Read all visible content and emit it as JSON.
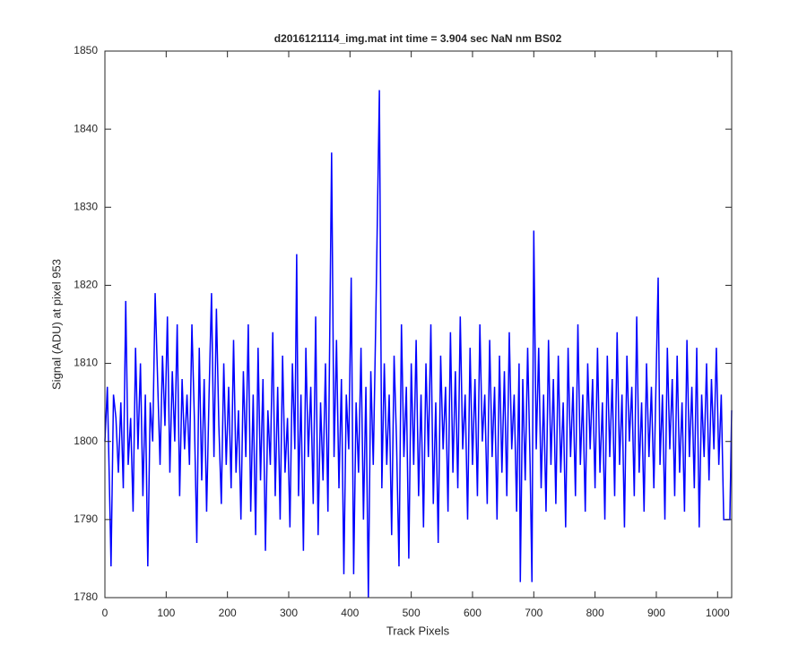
{
  "chart_data": {
    "type": "line",
    "title": "d2016121114_img.mat int time = 3.904 sec  NaN nm BS02",
    "x_label": "Track Pixels",
    "y_label": "Signal (ADU) at pixel 953",
    "xlim": [
      0,
      1023
    ],
    "ylim": [
      1780,
      1850
    ],
    "xticks": [
      0,
      100,
      200,
      300,
      400,
      500,
      600,
      700,
      800,
      900,
      1000
    ],
    "yticks": [
      1780,
      1790,
      1800,
      1810,
      1820,
      1830,
      1840,
      1850
    ],
    "grid": false,
    "x": [
      0,
      4,
      8,
      10,
      14,
      18,
      22,
      26,
      30,
      34,
      38,
      42,
      46,
      50,
      54,
      58,
      62,
      66,
      70,
      74,
      78,
      82,
      86,
      90,
      94,
      98,
      102,
      106,
      110,
      114,
      118,
      122,
      126,
      130,
      134,
      138,
      142,
      146,
      150,
      154,
      158,
      162,
      166,
      170,
      174,
      178,
      182,
      186,
      190,
      194,
      198,
      202,
      206,
      210,
      214,
      218,
      222,
      226,
      230,
      234,
      238,
      242,
      246,
      250,
      254,
      258,
      262,
      266,
      270,
      274,
      278,
      282,
      286,
      290,
      294,
      298,
      302,
      306,
      310,
      313,
      316,
      320,
      324,
      328,
      332,
      336,
      340,
      344,
      348,
      352,
      356,
      360,
      364,
      370,
      374,
      378,
      382,
      386,
      390,
      394,
      398,
      402,
      406,
      410,
      414,
      418,
      422,
      426,
      430,
      434,
      438,
      442,
      448,
      452,
      456,
      460,
      464,
      468,
      472,
      476,
      480,
      484,
      488,
      492,
      496,
      500,
      504,
      508,
      512,
      516,
      520,
      524,
      528,
      532,
      536,
      540,
      544,
      548,
      552,
      556,
      560,
      564,
      568,
      572,
      576,
      580,
      584,
      588,
      592,
      596,
      600,
      604,
      608,
      612,
      616,
      620,
      624,
      628,
      632,
      636,
      640,
      644,
      648,
      652,
      656,
      660,
      664,
      668,
      672,
      676,
      678,
      682,
      686,
      690,
      694,
      697,
      700,
      704,
      708,
      712,
      716,
      720,
      724,
      728,
      732,
      736,
      740,
      744,
      748,
      752,
      756,
      760,
      764,
      768,
      772,
      776,
      780,
      784,
      788,
      792,
      796,
      800,
      804,
      808,
      812,
      816,
      820,
      824,
      828,
      832,
      836,
      840,
      844,
      848,
      852,
      856,
      860,
      864,
      868,
      872,
      876,
      880,
      884,
      888,
      892,
      896,
      903,
      906,
      910,
      914,
      918,
      922,
      926,
      930,
      934,
      938,
      942,
      946,
      950,
      954,
      958,
      962,
      966,
      970,
      974,
      978,
      982,
      986,
      990,
      994,
      998,
      1002,
      1006,
      1010,
      1016,
      1020,
      1023
    ],
    "series": [
      {
        "name": "signal",
        "color": "#0000ff",
        "values": [
          1800,
          1807,
          1792,
          1784,
          1806,
          1803,
          1796,
          1805,
          1794,
          1818,
          1797,
          1803,
          1791,
          1812,
          1799,
          1810,
          1793,
          1806,
          1784,
          1805,
          1800,
          1819,
          1808,
          1797,
          1811,
          1802,
          1816,
          1796,
          1809,
          1800,
          1815,
          1793,
          1808,
          1799,
          1806,
          1797,
          1815,
          1803,
          1787,
          1812,
          1795,
          1808,
          1791,
          1806,
          1819,
          1798,
          1817,
          1802,
          1792,
          1810,
          1797,
          1807,
          1794,
          1813,
          1796,
          1804,
          1790,
          1809,
          1798,
          1815,
          1791,
          1806,
          1788,
          1812,
          1795,
          1808,
          1786,
          1804,
          1797,
          1814,
          1793,
          1807,
          1790,
          1811,
          1796,
          1803,
          1789,
          1810,
          1799,
          1824,
          1793,
          1806,
          1786,
          1812,
          1798,
          1807,
          1792,
          1816,
          1788,
          1805,
          1795,
          1810,
          1791,
          1837,
          1798,
          1813,
          1794,
          1808,
          1783,
          1806,
          1799,
          1821,
          1783,
          1805,
          1796,
          1812,
          1790,
          1807,
          1780,
          1809,
          1797,
          1815,
          1845,
          1794,
          1810,
          1797,
          1806,
          1788,
          1811,
          1800,
          1784,
          1815,
          1798,
          1807,
          1785,
          1810,
          1797,
          1813,
          1793,
          1806,
          1789,
          1810,
          1798,
          1815,
          1792,
          1805,
          1787,
          1811,
          1799,
          1807,
          1791,
          1814,
          1796,
          1809,
          1794,
          1816,
          1799,
          1806,
          1790,
          1812,
          1797,
          1808,
          1793,
          1815,
          1800,
          1806,
          1792,
          1813,
          1798,
          1807,
          1790,
          1811,
          1796,
          1809,
          1793,
          1814,
          1799,
          1806,
          1791,
          1810,
          1782,
          1808,
          1795,
          1812,
          1797,
          1782,
          1827,
          1799,
          1812,
          1794,
          1806,
          1791,
          1813,
          1797,
          1808,
          1792,
          1811,
          1796,
          1805,
          1789,
          1812,
          1798,
          1807,
          1793,
          1815,
          1797,
          1806,
          1791,
          1810,
          1799,
          1808,
          1794,
          1812,
          1796,
          1805,
          1790,
          1811,
          1798,
          1808,
          1793,
          1814,
          1797,
          1806,
          1789,
          1811,
          1800,
          1807,
          1793,
          1816,
          1796,
          1805,
          1791,
          1810,
          1798,
          1807,
          1794,
          1821,
          1797,
          1806,
          1790,
          1812,
          1799,
          1808,
          1793,
          1811,
          1796,
          1805,
          1791,
          1813,
          1798,
          1807,
          1794,
          1812,
          1789,
          1806,
          1798,
          1810,
          1795,
          1808,
          1799,
          1812,
          1797,
          1806,
          1790,
          1790,
          1790,
          1804
        ]
      }
    ]
  }
}
